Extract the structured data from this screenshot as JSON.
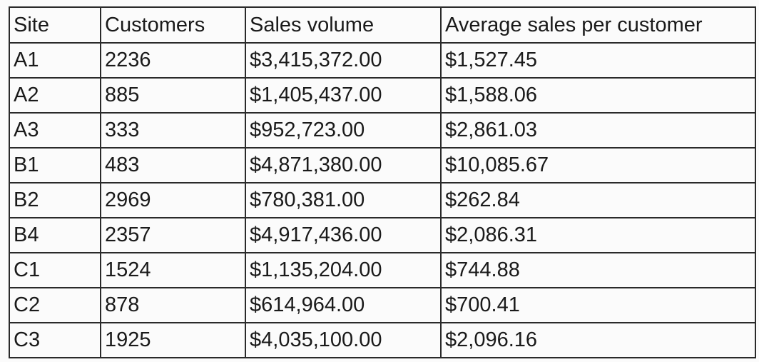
{
  "table": {
    "headers": [
      "Site",
      "Customers",
      "Sales volume",
      "Average sales per customer"
    ],
    "rows": [
      {
        "site": "A1",
        "customers": "2236",
        "sales_volume": "$3,415,372.00",
        "avg_sales": "$1,527.45"
      },
      {
        "site": "A2",
        "customers": "885",
        "sales_volume": "$1,405,437.00",
        "avg_sales": "$1,588.06"
      },
      {
        "site": "A3",
        "customers": "333",
        "sales_volume": "$952,723.00",
        "avg_sales": "$2,861.03"
      },
      {
        "site": "B1",
        "customers": "483",
        "sales_volume": "$4,871,380.00",
        "avg_sales": "$10,085.67"
      },
      {
        "site": "B2",
        "customers": "2969",
        "sales_volume": "$780,381.00",
        "avg_sales": "$262.84"
      },
      {
        "site": "B4",
        "customers": "2357",
        "sales_volume": "$4,917,436.00",
        "avg_sales": "$2,086.31"
      },
      {
        "site": "C1",
        "customers": "1524",
        "sales_volume": "$1,135,204.00",
        "avg_sales": "$744.88"
      },
      {
        "site": "C2",
        "customers": "878",
        "sales_volume": "$614,964.00",
        "avg_sales": "$700.41"
      },
      {
        "site": "C3",
        "customers": "1925",
        "sales_volume": "$4,035,100.00",
        "avg_sales": "$2,096.16"
      }
    ]
  }
}
